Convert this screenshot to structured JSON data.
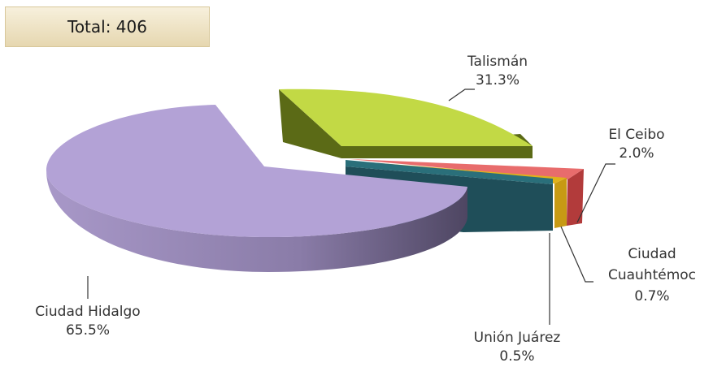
{
  "total_label": "Total: 406",
  "chart_data": {
    "type": "pie",
    "title": "",
    "total": 406,
    "slices": [
      {
        "name": "Ciudad Hidalgo",
        "label": "Ciudad Hidalgo",
        "value": 65.5,
        "value_label": "65.5%",
        "color": "#b3a2d6",
        "side_color": "#5e5475"
      },
      {
        "name": "Talismán",
        "label": "Talismán",
        "value": 31.3,
        "value_label": "31.3%",
        "color": "#c2d945",
        "side_color": "#6b7a1a"
      },
      {
        "name": "El Ceibo",
        "label": "El Ceibo",
        "value": 2.0,
        "value_label": "2.0%",
        "color": "#e86c6c",
        "side_color": "#a23a3a"
      },
      {
        "name": "Ciudad Cuauhtémoc",
        "label": "Ciudad Cuauhtémoc",
        "value": 0.7,
        "value_label": "0.7%",
        "color": "#e0b21b",
        "side_color": "#9a7b0e"
      },
      {
        "name": "Unión Juárez",
        "label": "Unión Juárez",
        "value": 0.5,
        "value_label": "0.5%",
        "color": "#2a6f7a",
        "side_color": "#1f4a57"
      }
    ],
    "style": "3d-exploded"
  }
}
